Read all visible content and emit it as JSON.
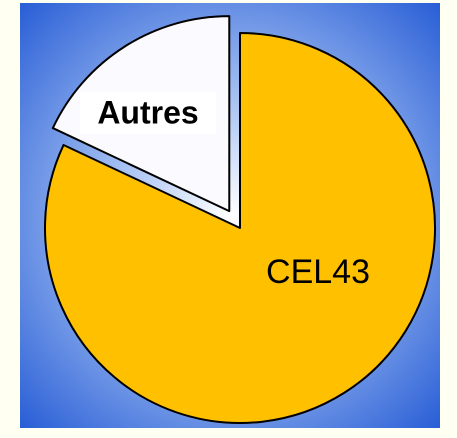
{
  "chart_data": {
    "type": "pie",
    "categories": [
      "CEL43",
      "Autres"
    ],
    "values": [
      82,
      18
    ],
    "colors": [
      "#ffc000",
      "#fbfbff"
    ],
    "exploded": [
      false,
      true
    ]
  }
}
